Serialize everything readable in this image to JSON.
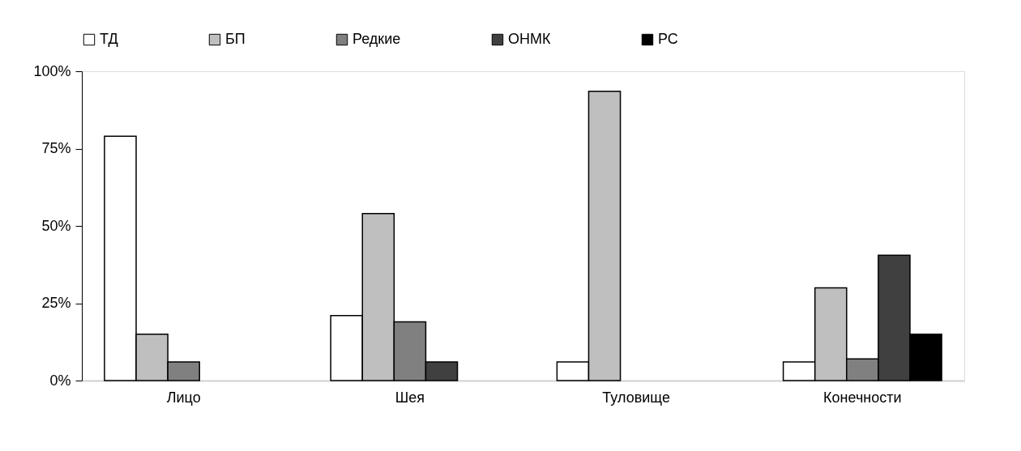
{
  "chart_data": {
    "type": "bar",
    "categories": [
      "Лицо",
      "Шея",
      "Туловище",
      "Конечности"
    ],
    "series": [
      {
        "name": "ТД",
        "color": "#ffffff",
        "values": [
          79,
          21,
          6,
          6
        ]
      },
      {
        "name": "БП",
        "color": "#bfbfbf",
        "values": [
          15,
          54,
          93.5,
          30
        ]
      },
      {
        "name": "Редкие",
        "color": "#808080",
        "values": [
          6,
          19,
          null,
          7
        ]
      },
      {
        "name": "ОНМК",
        "color": "#404040",
        "values": [
          null,
          6,
          null,
          40.5
        ]
      },
      {
        "name": "РС",
        "color": "#000000",
        "values": [
          null,
          null,
          null,
          15
        ]
      }
    ],
    "ylim": [
      0,
      100
    ],
    "yticks": [
      {
        "value": 0,
        "label": "0%"
      },
      {
        "value": 25,
        "label": "25%"
      },
      {
        "value": 50,
        "label": "50%"
      },
      {
        "value": 75,
        "label": "75%"
      },
      {
        "value": 100,
        "label": "100%"
      }
    ],
    "grid": false,
    "legend": "top"
  }
}
